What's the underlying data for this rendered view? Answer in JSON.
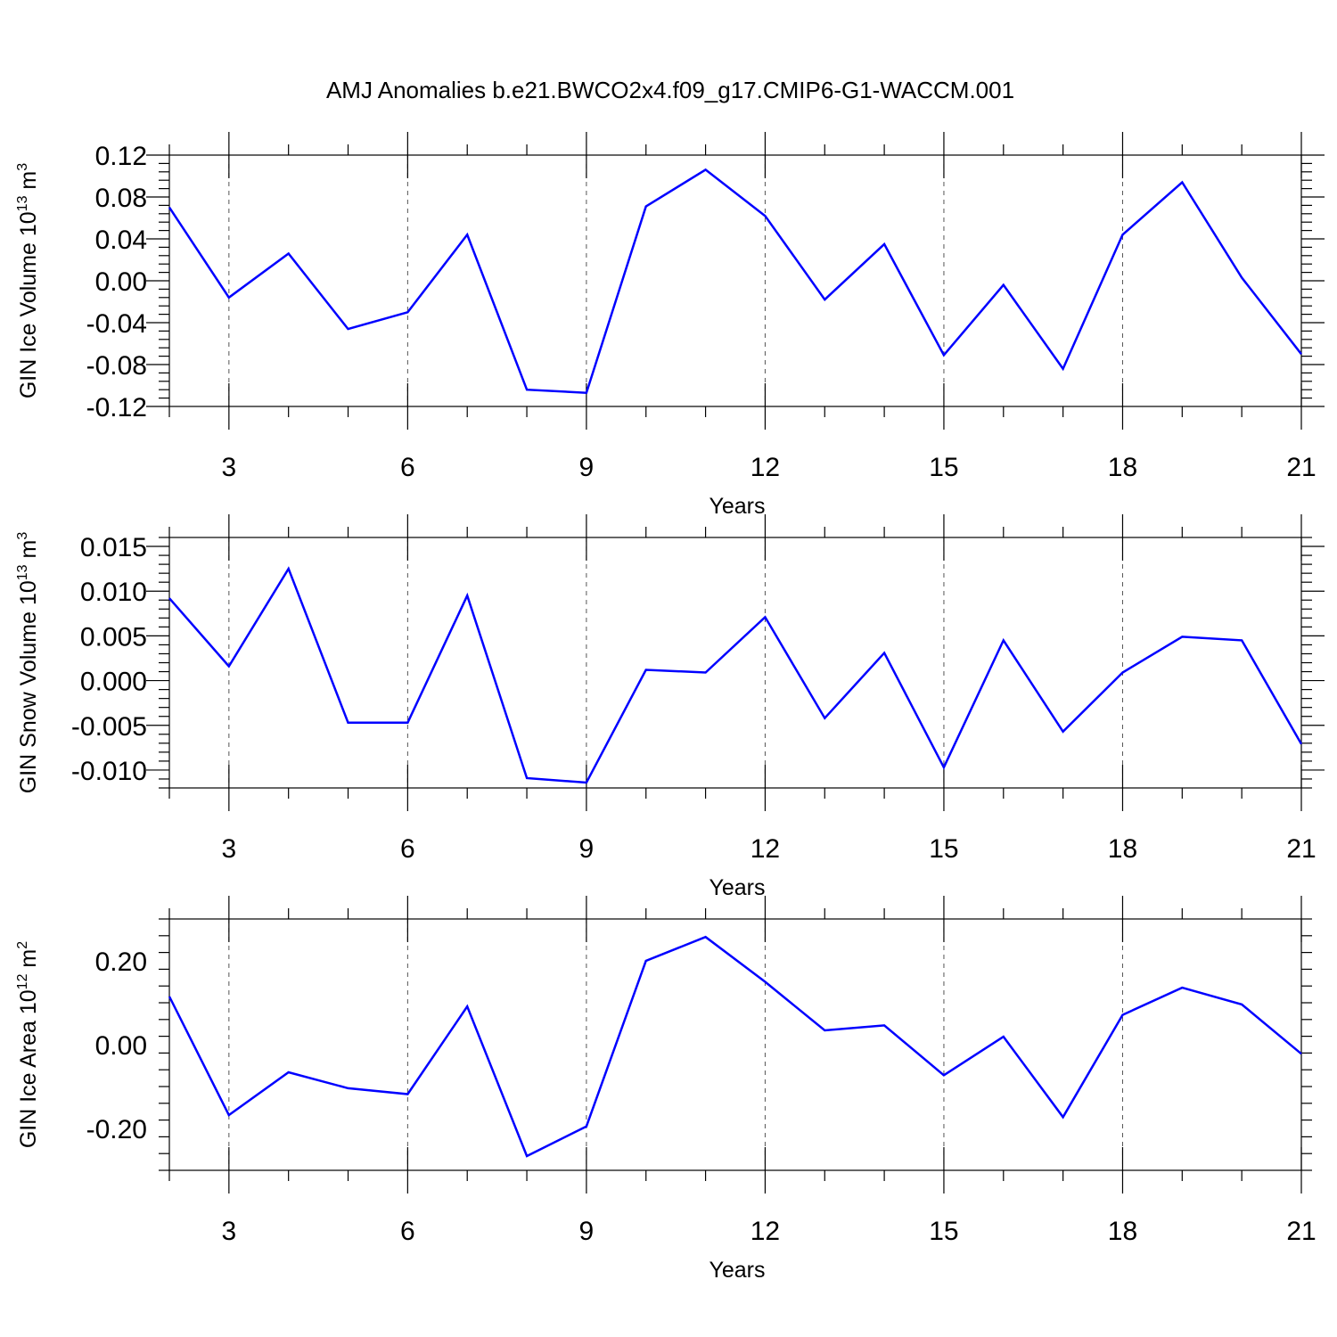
{
  "figure": {
    "title": "AMJ Anomalies b.e21.BWCO2x4.f09_g17.CMIP6-G1-WACCM.001"
  },
  "chart_data": [
    {
      "type": "line",
      "ylabel": "GIN Ice Volume 10",
      "ylabel_sup": "13",
      "ylabel_unit": " m",
      "ylabel_unit_sup": "3",
      "xlabel": "Years",
      "xlim": [
        2,
        21
      ],
      "ylim": [
        -0.12,
        0.12
      ],
      "xticks": [
        3,
        6,
        9,
        12,
        15,
        18,
        21
      ],
      "yticks": [
        -0.12,
        -0.08,
        -0.04,
        0.0,
        0.04,
        0.08,
        0.12
      ],
      "ytick_labels": [
        "-0.12",
        "-0.08",
        "-0.04",
        "0.00",
        "0.04",
        "0.08",
        "0.12"
      ],
      "grid_x": true,
      "x": [
        2,
        3,
        4,
        5,
        6,
        7,
        8,
        9,
        10,
        11,
        12,
        13,
        14,
        15,
        16,
        17,
        18,
        19,
        20,
        21
      ],
      "series": [
        {
          "values": [
            0.07,
            -0.016,
            0.026,
            -0.046,
            -0.03,
            0.044,
            -0.104,
            -0.107,
            0.071,
            0.106,
            0.062,
            -0.018,
            0.035,
            -0.071,
            -0.004,
            -0.084,
            0.044,
            0.094,
            0.003,
            -0.07
          ],
          "color": "#0000ff"
        }
      ]
    },
    {
      "type": "line",
      "ylabel": "GIN Snow Volume 10",
      "ylabel_sup": "13",
      "ylabel_unit": " m",
      "ylabel_unit_sup": "3",
      "xlabel": "Years",
      "xlim": [
        2,
        21
      ],
      "ylim": [
        -0.012,
        0.016
      ],
      "xticks": [
        3,
        6,
        9,
        12,
        15,
        18,
        21
      ],
      "yticks": [
        -0.01,
        -0.005,
        0.0,
        0.005,
        0.01,
        0.015
      ],
      "ytick_labels": [
        "-0.010",
        "-0.005",
        "0.000",
        "0.005",
        "0.010",
        "0.015"
      ],
      "grid_x": true,
      "x": [
        2,
        3,
        4,
        5,
        6,
        7,
        8,
        9,
        10,
        11,
        12,
        13,
        14,
        15,
        16,
        17,
        18,
        19,
        20,
        21
      ],
      "series": [
        {
          "values": [
            0.0092,
            0.0016,
            0.0125,
            -0.0047,
            -0.0047,
            0.0095,
            -0.0109,
            -0.0114,
            0.0012,
            0.0009,
            0.0071,
            -0.0042,
            0.0031,
            -0.0097,
            0.0045,
            -0.0057,
            0.0009,
            0.0049,
            0.0045,
            -0.0071
          ],
          "color": "#0000ff"
        }
      ]
    },
    {
      "type": "line",
      "ylabel": "GIN Ice Area 10",
      "ylabel_sup": "12",
      "ylabel_unit": " m",
      "ylabel_unit_sup": "2",
      "xlabel": "Years",
      "xlim": [
        2,
        21
      ],
      "ylim": [
        -0.3,
        0.3
      ],
      "xticks": [
        3,
        6,
        9,
        12,
        15,
        18,
        21
      ],
      "yticks": [
        -0.2,
        0.0,
        0.2
      ],
      "ytick_labels": [
        "-0.20",
        "0.00",
        "0.20"
      ],
      "grid_x": true,
      "x": [
        2,
        3,
        4,
        5,
        6,
        7,
        8,
        9,
        10,
        11,
        12,
        13,
        14,
        15,
        16,
        17,
        18,
        19,
        20,
        21
      ],
      "series": [
        {
          "values": [
            0.115,
            -0.168,
            -0.066,
            -0.104,
            -0.118,
            0.091,
            -0.266,
            -0.195,
            0.2,
            0.257,
            0.15,
            0.034,
            0.046,
            -0.073,
            0.019,
            -0.173,
            0.071,
            0.136,
            0.096,
            -0.022
          ],
          "color": "#0000ff"
        }
      ]
    }
  ]
}
